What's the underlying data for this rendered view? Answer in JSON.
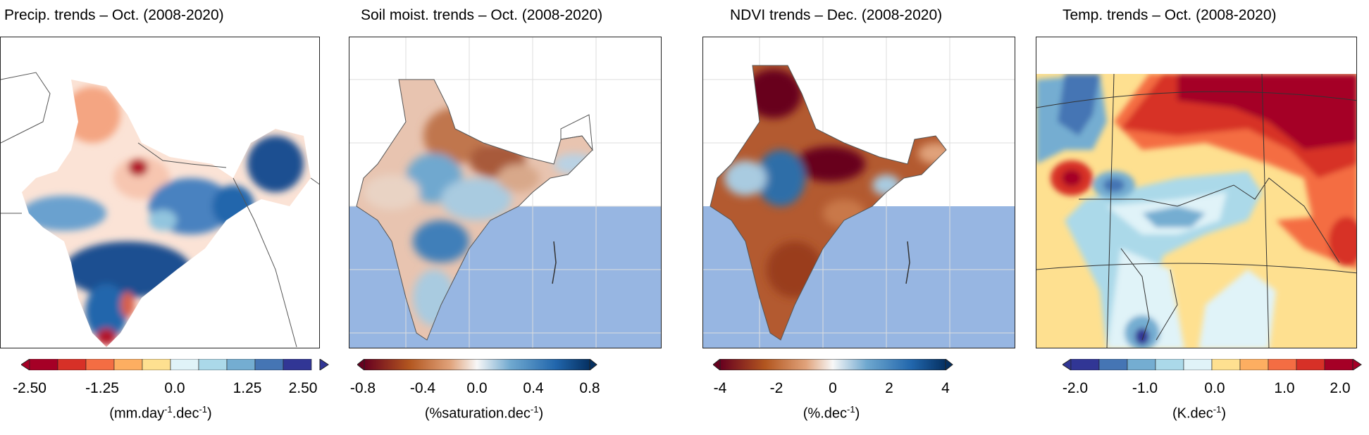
{
  "panels": [
    {
      "title": "Precip. trends – Oct. (2008-2020)",
      "ticks": [
        "-2.50",
        "-1.25",
        "0.0",
        "1.25",
        "2.50"
      ],
      "unit_pre": "(mm.day",
      "unit_sup1": "-1",
      "unit_mid": ".dec",
      "unit_sup2": "-1",
      "unit_post": ")",
      "colormap": [
        "#a50026",
        "#d73027",
        "#f46d43",
        "#fdae61",
        "#fee090",
        "#e0f3f8",
        "#abd9e9",
        "#74add1",
        "#4575b4",
        "#313695"
      ]
    },
    {
      "title": "Soil moist. trends – Oct. (2008-2020)",
      "ticks": [
        "-0.8",
        "-0.4",
        "0.0",
        "0.4",
        "0.8"
      ],
      "unit_pre": "(%saturation.dec",
      "unit_sup1": "-1",
      "unit_post": ")",
      "colormap": [
        "#67001f",
        "#b2561f",
        "#e0a27a",
        "#f7f7f7",
        "#6fa8cf",
        "#2166ac",
        "#053061"
      ]
    },
    {
      "title": "NDVI trends – Dec. (2008-2020)",
      "ticks": [
        "-4",
        "-2",
        "0",
        "2",
        "4"
      ],
      "unit_pre": "(%.dec",
      "unit_sup1": "-1",
      "unit_post": ")",
      "colormap": [
        "#67001f",
        "#b2561f",
        "#e0a27a",
        "#f7f7f7",
        "#6fa8cf",
        "#2166ac",
        "#053061"
      ]
    },
    {
      "title": "Temp. trends – Oct.  (2008-2020)",
      "ticks": [
        "-2.0",
        "-1.0",
        "0.0",
        "1.0",
        "2.0"
      ],
      "unit_pre": "(K.dec",
      "unit_sup1": "-1",
      "unit_post": ")",
      "colormap": [
        "#313695",
        "#4575b4",
        "#74add1",
        "#abd9e9",
        "#e0f3f8",
        "#fee090",
        "#fdae61",
        "#f46d43",
        "#d73027",
        "#a50026"
      ]
    }
  ],
  "colors": {
    "ocean": "#97b6e2",
    "border": "#555555"
  },
  "icons": [
    "colorbar-min-arrow-icon",
    "colorbar-max-arrow-icon"
  ]
}
